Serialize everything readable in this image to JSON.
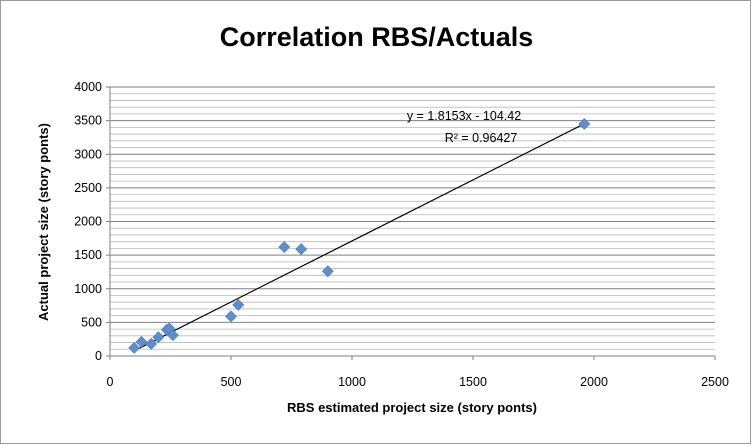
{
  "chart_data": {
    "type": "scatter",
    "title": "Correlation RBS/Actuals",
    "xlabel": "RBS estimated project size (story ponts)",
    "ylabel": "Actual project size (story ponts)",
    "xlim": [
      0,
      2500
    ],
    "ylim": [
      0,
      4000
    ],
    "xticks": [
      0,
      500,
      1000,
      1500,
      2000,
      2500
    ],
    "yticks": [
      0,
      500,
      1000,
      1500,
      2000,
      2500,
      3000,
      3500,
      4000
    ],
    "grid": true,
    "marker_color": "#5b8fcf",
    "points": [
      {
        "x": 100,
        "y": 120
      },
      {
        "x": 130,
        "y": 210
      },
      {
        "x": 170,
        "y": 180
      },
      {
        "x": 200,
        "y": 280
      },
      {
        "x": 235,
        "y": 390
      },
      {
        "x": 245,
        "y": 410
      },
      {
        "x": 260,
        "y": 310
      },
      {
        "x": 500,
        "y": 590
      },
      {
        "x": 530,
        "y": 760
      },
      {
        "x": 720,
        "y": 1620
      },
      {
        "x": 790,
        "y": 1590
      },
      {
        "x": 900,
        "y": 1260
      },
      {
        "x": 1960,
        "y": 3450
      }
    ],
    "trendline": {
      "slope": 1.8153,
      "intercept": -104.42,
      "x_start": 100,
      "x_end": 1960
    },
    "equation_label": "y = 1.8153x - 104.42",
    "r2_label": "R² = 0.96427"
  }
}
